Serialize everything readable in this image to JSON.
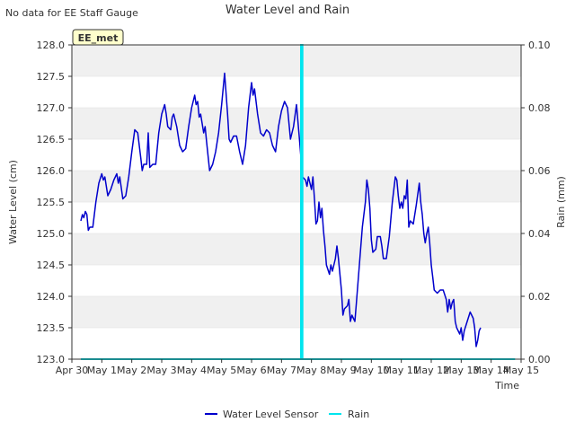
{
  "notice": "No data for EE Staff Gauge",
  "chart_data": {
    "type": "line",
    "title": "Water Level and Rain",
    "site_badge": "EE_met",
    "xlabel": "Time",
    "ylabel_left": "Water Level (cm)",
    "ylabel_right": "Rain (mm)",
    "x_range": [
      0,
      15
    ],
    "y_left_range": [
      123.0,
      128.0
    ],
    "y_right_range": [
      0.0,
      0.1
    ],
    "x_ticks": [
      {
        "v": 0,
        "label": "Apr 30"
      },
      {
        "v": 1,
        "label": "May 1"
      },
      {
        "v": 2,
        "label": "May 2"
      },
      {
        "v": 3,
        "label": "May 3"
      },
      {
        "v": 4,
        "label": "May 4"
      },
      {
        "v": 5,
        "label": "May 5"
      },
      {
        "v": 6,
        "label": "May 6"
      },
      {
        "v": 7,
        "label": "May 7"
      },
      {
        "v": 8,
        "label": "May 8"
      },
      {
        "v": 9,
        "label": "May 9"
      },
      {
        "v": 10,
        "label": "May 10"
      },
      {
        "v": 11,
        "label": "May 11"
      },
      {
        "v": 12,
        "label": "May 12"
      },
      {
        "v": 13,
        "label": "May 13"
      },
      {
        "v": 14,
        "label": "May 14"
      },
      {
        "v": 15,
        "label": "May 15"
      }
    ],
    "y_left_ticks": [
      "123.0",
      "123.5",
      "124.0",
      "124.5",
      "125.0",
      "125.5",
      "126.0",
      "126.5",
      "127.0",
      "127.5",
      "128.0"
    ],
    "y_right_ticks": [
      "0.00",
      "0.02",
      "0.04",
      "0.06",
      "0.08",
      "0.10"
    ],
    "legend": [
      {
        "name": "Water Level Sensor",
        "color": "#0000cc"
      },
      {
        "name": "Rain",
        "color": "#00e5ee"
      }
    ],
    "colors": {
      "water": "#0000cc",
      "rain": "#00e5ee",
      "band": "#f0f0f0",
      "grid": "#dddddd"
    },
    "series": [
      {
        "name": "Water Level Sensor",
        "axis": "left",
        "points": [
          [
            0.3,
            125.2
          ],
          [
            0.35,
            125.3
          ],
          [
            0.4,
            125.25
          ],
          [
            0.45,
            125.35
          ],
          [
            0.5,
            125.3
          ],
          [
            0.55,
            125.05
          ],
          [
            0.6,
            125.1
          ],
          [
            0.7,
            125.1
          ],
          [
            0.8,
            125.5
          ],
          [
            0.9,
            125.8
          ],
          [
            1.0,
            125.95
          ],
          [
            1.05,
            125.85
          ],
          [
            1.1,
            125.9
          ],
          [
            1.2,
            125.6
          ],
          [
            1.3,
            125.7
          ],
          [
            1.4,
            125.85
          ],
          [
            1.5,
            125.95
          ],
          [
            1.55,
            125.8
          ],
          [
            1.6,
            125.9
          ],
          [
            1.7,
            125.55
          ],
          [
            1.8,
            125.6
          ],
          [
            1.9,
            125.9
          ],
          [
            2.0,
            126.3
          ],
          [
            2.1,
            126.65
          ],
          [
            2.2,
            126.6
          ],
          [
            2.3,
            126.2
          ],
          [
            2.35,
            126.0
          ],
          [
            2.4,
            126.1
          ],
          [
            2.5,
            126.1
          ],
          [
            2.55,
            126.6
          ],
          [
            2.6,
            126.05
          ],
          [
            2.7,
            126.1
          ],
          [
            2.8,
            126.1
          ],
          [
            2.9,
            126.6
          ],
          [
            3.0,
            126.9
          ],
          [
            3.1,
            127.05
          ],
          [
            3.15,
            126.9
          ],
          [
            3.2,
            126.7
          ],
          [
            3.3,
            126.65
          ],
          [
            3.35,
            126.85
          ],
          [
            3.4,
            126.9
          ],
          [
            3.5,
            126.7
          ],
          [
            3.6,
            126.4
          ],
          [
            3.7,
            126.3
          ],
          [
            3.8,
            126.35
          ],
          [
            3.9,
            126.7
          ],
          [
            4.0,
            127.0
          ],
          [
            4.1,
            127.2
          ],
          [
            4.15,
            127.05
          ],
          [
            4.2,
            127.1
          ],
          [
            4.25,
            126.85
          ],
          [
            4.3,
            126.9
          ],
          [
            4.4,
            126.6
          ],
          [
            4.45,
            126.7
          ],
          [
            4.5,
            126.45
          ],
          [
            4.6,
            126.0
          ],
          [
            4.7,
            126.1
          ],
          [
            4.8,
            126.3
          ],
          [
            4.9,
            126.6
          ],
          [
            5.0,
            127.05
          ],
          [
            5.1,
            127.55
          ],
          [
            5.2,
            126.9
          ],
          [
            5.25,
            126.5
          ],
          [
            5.3,
            126.45
          ],
          [
            5.4,
            126.55
          ],
          [
            5.5,
            126.55
          ],
          [
            5.6,
            126.3
          ],
          [
            5.7,
            126.1
          ],
          [
            5.8,
            126.4
          ],
          [
            5.9,
            127.0
          ],
          [
            6.0,
            127.4
          ],
          [
            6.05,
            127.2
          ],
          [
            6.1,
            127.3
          ],
          [
            6.2,
            126.9
          ],
          [
            6.3,
            126.6
          ],
          [
            6.4,
            126.55
          ],
          [
            6.5,
            126.65
          ],
          [
            6.6,
            126.6
          ],
          [
            6.7,
            126.4
          ],
          [
            6.8,
            126.3
          ],
          [
            6.9,
            126.7
          ],
          [
            7.0,
            126.95
          ],
          [
            7.1,
            127.1
          ],
          [
            7.2,
            127.0
          ],
          [
            7.3,
            126.5
          ],
          [
            7.4,
            126.7
          ],
          [
            7.5,
            127.05
          ],
          [
            7.6,
            126.5
          ],
          [
            7.65,
            126.2
          ],
          [
            7.7,
            125.9
          ],
          [
            7.8,
            125.85
          ],
          [
            7.85,
            125.75
          ],
          [
            7.9,
            125.9
          ],
          [
            7.95,
            125.8
          ],
          [
            8.0,
            125.7
          ],
          [
            8.05,
            125.9
          ],
          [
            8.1,
            125.55
          ],
          [
            8.15,
            125.15
          ],
          [
            8.2,
            125.2
          ],
          [
            8.25,
            125.5
          ],
          [
            8.3,
            125.25
          ],
          [
            8.35,
            125.4
          ],
          [
            8.4,
            125.05
          ],
          [
            8.45,
            124.8
          ],
          [
            8.5,
            124.5
          ],
          [
            8.6,
            124.35
          ],
          [
            8.65,
            124.5
          ],
          [
            8.7,
            124.4
          ],
          [
            8.8,
            124.6
          ],
          [
            8.85,
            124.8
          ],
          [
            8.9,
            124.6
          ],
          [
            9.0,
            124.1
          ],
          [
            9.05,
            123.7
          ],
          [
            9.1,
            123.8
          ],
          [
            9.2,
            123.85
          ],
          [
            9.25,
            123.95
          ],
          [
            9.3,
            123.6
          ],
          [
            9.35,
            123.7
          ],
          [
            9.45,
            123.6
          ],
          [
            9.5,
            123.9
          ],
          [
            9.6,
            124.5
          ],
          [
            9.7,
            125.1
          ],
          [
            9.8,
            125.5
          ],
          [
            9.85,
            125.85
          ],
          [
            9.9,
            125.7
          ],
          [
            9.95,
            125.4
          ],
          [
            10.0,
            124.9
          ],
          [
            10.05,
            124.7
          ],
          [
            10.15,
            124.75
          ],
          [
            10.2,
            124.95
          ],
          [
            10.3,
            124.95
          ],
          [
            10.35,
            124.8
          ],
          [
            10.4,
            124.6
          ],
          [
            10.5,
            124.6
          ],
          [
            10.6,
            124.95
          ],
          [
            10.7,
            125.5
          ],
          [
            10.8,
            125.9
          ],
          [
            10.85,
            125.85
          ],
          [
            10.9,
            125.6
          ],
          [
            10.95,
            125.4
          ],
          [
            11.0,
            125.5
          ],
          [
            11.05,
            125.4
          ],
          [
            11.1,
            125.6
          ],
          [
            11.15,
            125.55
          ],
          [
            11.2,
            125.85
          ],
          [
            11.25,
            125.1
          ],
          [
            11.3,
            125.2
          ],
          [
            11.4,
            125.15
          ],
          [
            11.5,
            125.45
          ],
          [
            11.6,
            125.8
          ],
          [
            11.65,
            125.5
          ],
          [
            11.7,
            125.3
          ],
          [
            11.75,
            125.0
          ],
          [
            11.8,
            124.85
          ],
          [
            11.85,
            125.0
          ],
          [
            11.9,
            125.1
          ],
          [
            11.95,
            124.85
          ],
          [
            12.0,
            124.5
          ],
          [
            12.05,
            124.3
          ],
          [
            12.1,
            124.1
          ],
          [
            12.2,
            124.05
          ],
          [
            12.3,
            124.1
          ],
          [
            12.4,
            124.1
          ],
          [
            12.5,
            123.95
          ],
          [
            12.55,
            123.75
          ],
          [
            12.6,
            123.95
          ],
          [
            12.65,
            123.8
          ],
          [
            12.7,
            123.9
          ],
          [
            12.75,
            123.95
          ],
          [
            12.8,
            123.6
          ],
          [
            12.85,
            123.5
          ],
          [
            12.95,
            123.4
          ],
          [
            13.0,
            123.5
          ],
          [
            13.05,
            123.3
          ],
          [
            13.1,
            123.45
          ],
          [
            13.2,
            123.6
          ],
          [
            13.3,
            123.75
          ],
          [
            13.4,
            123.65
          ],
          [
            13.45,
            123.5
          ],
          [
            13.5,
            123.2
          ],
          [
            13.55,
            123.3
          ],
          [
            13.6,
            123.45
          ],
          [
            13.65,
            123.5
          ]
        ]
      },
      {
        "name": "Rain",
        "axis": "right",
        "points": [
          [
            0.3,
            0.0
          ],
          [
            7.65,
            0.0
          ],
          [
            7.65,
            0.1
          ],
          [
            7.7,
            0.1
          ],
          [
            7.7,
            0.0
          ],
          [
            14.8,
            0.0
          ]
        ]
      }
    ]
  }
}
